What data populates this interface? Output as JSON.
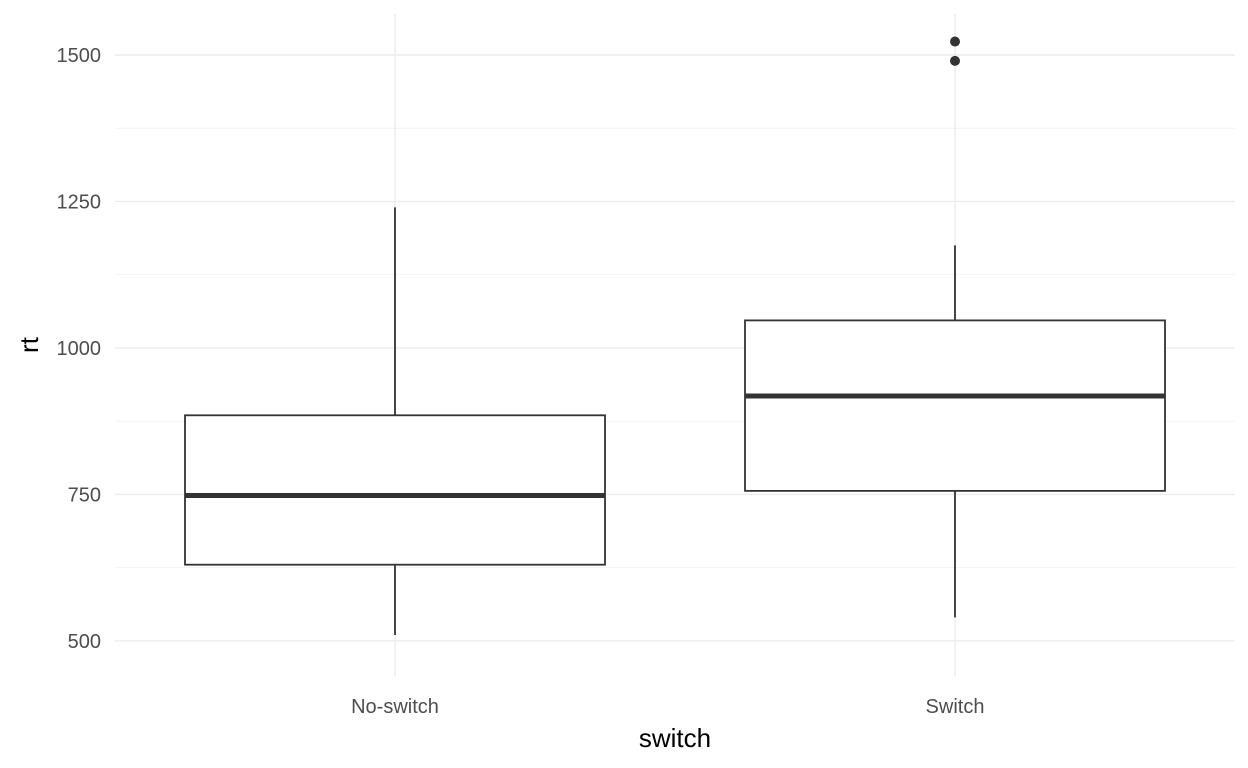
{
  "chart_data": {
    "type": "boxplot",
    "xlabel": "switch",
    "ylabel": "rt",
    "ylim": [
      440,
      1570
    ],
    "y_ticks": [
      500,
      750,
      1000,
      1250,
      1500
    ],
    "y_tick_labels": [
      "500",
      "750",
      "1000",
      "1250",
      "1500"
    ],
    "y_minor_ticks": [
      625,
      875,
      1125,
      1375
    ],
    "grid": true,
    "legend": "none",
    "colors": {
      "box_outline": "#333333",
      "box_fill": "#ffffff",
      "grid": "#ebebeb",
      "tick_text": "#4d4d4d"
    },
    "categories": [
      "No-switch",
      "Switch"
    ],
    "boxes": [
      {
        "category": "No-switch",
        "whisker_low": 510,
        "q1": 630,
        "median": 748,
        "q3": 885,
        "whisker_high": 1240,
        "outliers": []
      },
      {
        "category": "Switch",
        "whisker_low": 540,
        "q1": 756,
        "median": 918,
        "q3": 1047,
        "whisker_high": 1175,
        "outliers": [
          1490,
          1523
        ]
      }
    ]
  }
}
